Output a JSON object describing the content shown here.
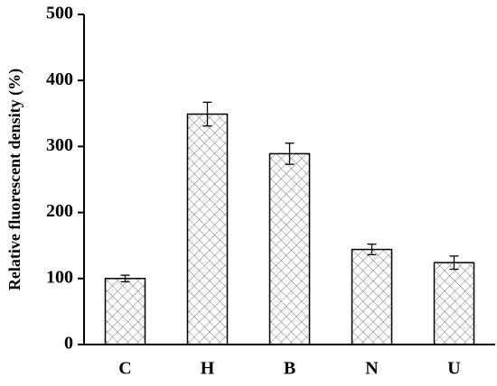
{
  "chart_data": {
    "type": "bar",
    "y_label": "Relative fluorescent density (%)",
    "categories": [
      "C",
      "H",
      "B",
      "N",
      "U"
    ],
    "values": [
      100,
      349,
      289,
      144,
      124
    ],
    "errors": [
      5,
      18,
      16,
      8,
      10
    ],
    "color": "#000000",
    "ylim": [
      0,
      500
    ],
    "yticks": [
      0,
      100,
      200,
      300,
      400,
      500
    ],
    "grid": false
  }
}
